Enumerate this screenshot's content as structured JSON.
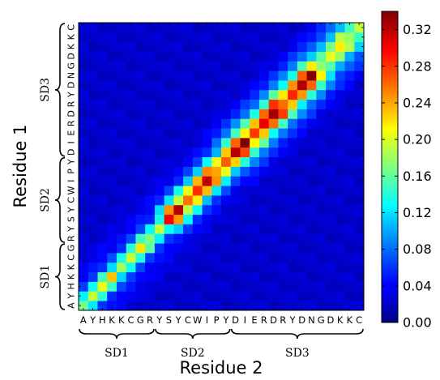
{
  "chart_data": {
    "type": "heatmap",
    "title": "",
    "xlabel": "Residue 2",
    "ylabel": "Residue 1",
    "x_residues": [
      "A",
      "Y",
      "H",
      "K",
      "K",
      "C",
      "G",
      "R",
      "Y",
      "S",
      "Y",
      "C",
      "W",
      "I",
      "P",
      "Y",
      "D",
      "I",
      "E",
      "R",
      "D",
      "R",
      "Y",
      "D",
      "N",
      "G",
      "D",
      "K",
      "K",
      "C"
    ],
    "y_residues": [
      "A",
      "Y",
      "H",
      "K",
      "K",
      "C",
      "G",
      "R",
      "Y",
      "S",
      "Y",
      "C",
      "W",
      "I",
      "P",
      "Y",
      "D",
      "I",
      "E",
      "R",
      "D",
      "R",
      "Y",
      "D",
      "N",
      "G",
      "D",
      "K",
      "K",
      "C"
    ],
    "x_segments": [
      {
        "label": "SD1",
        "start": 0,
        "end": 7
      },
      {
        "label": "SD2",
        "start": 8,
        "end": 15
      },
      {
        "label": "SD3",
        "start": 16,
        "end": 29
      }
    ],
    "y_segments": [
      {
        "label": "SD1",
        "start": 0,
        "end": 6
      },
      {
        "label": "SD2",
        "start": 7,
        "end": 15
      },
      {
        "label": "SD3",
        "start": 16,
        "end": 29
      }
    ],
    "colorbar": {
      "min": 0.0,
      "max": 0.34,
      "ticks": [
        "0.00",
        "0.04",
        "0.08",
        "0.12",
        "0.16",
        "0.20",
        "0.24",
        "0.28",
        "0.32"
      ],
      "colormap": "jet"
    },
    "bands": [
      {
        "i0": 0,
        "i1": 8,
        "peak": 0.2,
        "width": 1.0
      },
      {
        "i0": 8,
        "i1": 15,
        "peak": 0.3,
        "width": 1.3
      },
      {
        "i0": 15,
        "i1": 24,
        "peak": 0.32,
        "width": 1.35
      },
      {
        "i0": 24,
        "i1": 29,
        "peak": 0.2,
        "width": 1.3
      }
    ],
    "background": 0.02
  }
}
